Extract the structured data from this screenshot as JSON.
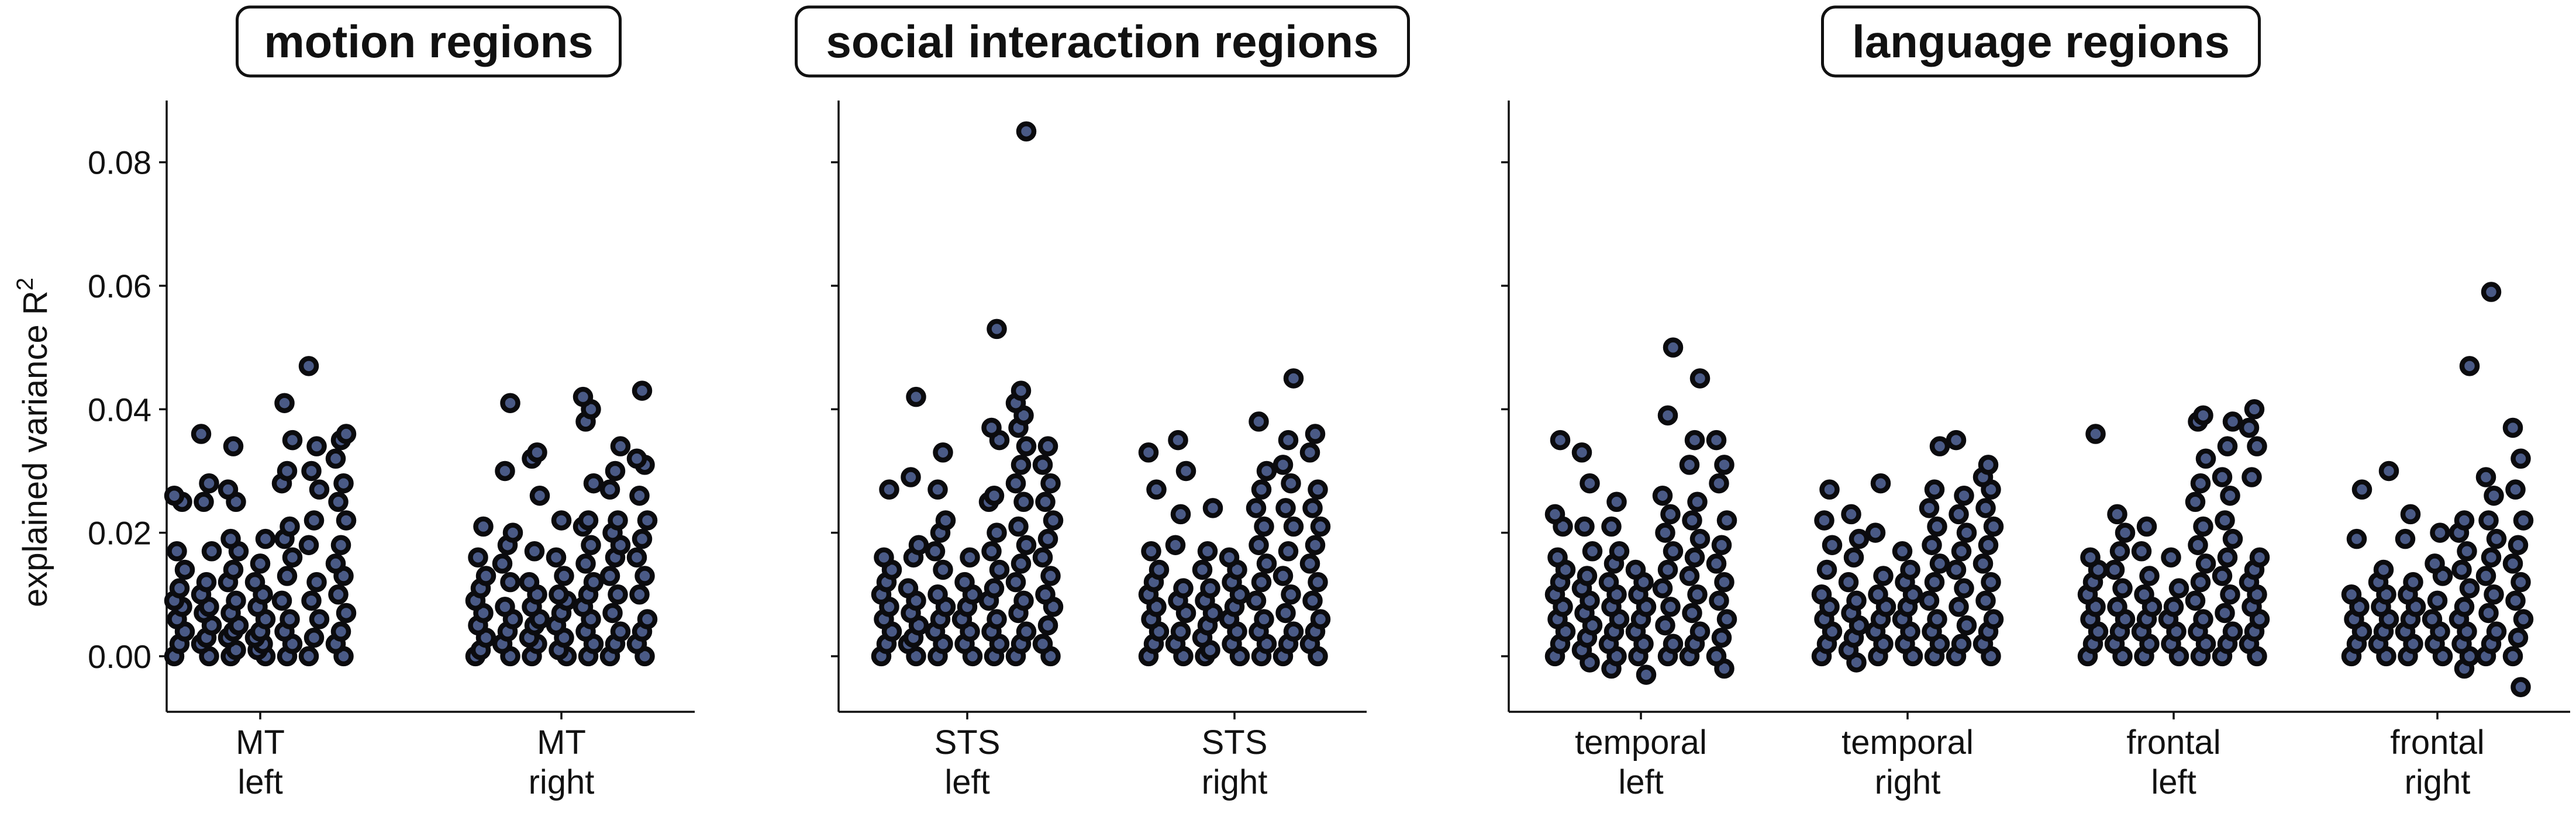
{
  "chart_data": {
    "type": "scatter",
    "ylabel": "explained variance R",
    "ylabel_superscript": "2",
    "ylim": [
      -0.009,
      0.09
    ],
    "yticks": [
      "0.00",
      "0.02",
      "0.04",
      "0.06",
      "0.08"
    ],
    "grid": false,
    "legend": "none",
    "colors": {
      "marker_fill": "#4a5a86",
      "marker_edge": "#0b0b0e",
      "axis": "#111111"
    },
    "panels": [
      {
        "title": "motion regions",
        "groups": [
          {
            "line1": "MT",
            "line2": "left",
            "values": [
              0.0,
              0.002,
              0.004,
              0.006,
              0.008,
              0.009,
              0.011,
              0.014,
              0.017,
              0.025,
              0.026,
              0.0,
              0.002,
              0.003,
              0.005,
              0.007,
              0.008,
              0.01,
              0.012,
              0.017,
              0.025,
              0.028,
              0.036,
              0.0,
              0.001,
              0.003,
              0.004,
              0.005,
              0.007,
              0.009,
              0.012,
              0.014,
              0.017,
              0.019,
              0.025,
              0.027,
              0.034,
              0.0,
              0.001,
              0.002,
              0.003,
              0.004,
              0.006,
              0.008,
              0.01,
              0.012,
              0.015,
              0.019,
              0.0,
              0.002,
              0.004,
              0.006,
              0.009,
              0.013,
              0.016,
              0.019,
              0.021,
              0.028,
              0.03,
              0.035,
              0.041,
              0.0,
              0.003,
              0.006,
              0.009,
              0.012,
              0.018,
              0.022,
              0.027,
              0.03,
              0.034,
              0.047,
              0.0,
              0.002,
              0.004,
              0.007,
              0.01,
              0.013,
              0.015,
              0.018,
              0.022,
              0.025,
              0.028,
              0.032,
              0.035,
              0.036
            ]
          },
          {
            "line1": "MT",
            "line2": "right",
            "values": [
              0.0,
              0.001,
              0.003,
              0.005,
              0.007,
              0.009,
              0.011,
              0.013,
              0.016,
              0.021,
              0.0,
              0.002,
              0.004,
              0.006,
              0.008,
              0.012,
              0.015,
              0.018,
              0.02,
              0.03,
              0.041,
              0.0,
              0.002,
              0.003,
              0.005,
              0.006,
              0.008,
              0.01,
              0.012,
              0.017,
              0.026,
              0.032,
              0.033,
              0.0,
              0.001,
              0.003,
              0.005,
              0.007,
              0.009,
              0.01,
              0.013,
              0.016,
              0.022,
              0.0,
              0.002,
              0.004,
              0.006,
              0.008,
              0.01,
              0.012,
              0.015,
              0.018,
              0.021,
              0.022,
              0.028,
              0.038,
              0.04,
              0.042,
              0.0,
              0.002,
              0.004,
              0.007,
              0.01,
              0.013,
              0.016,
              0.018,
              0.02,
              0.022,
              0.027,
              0.03,
              0.034,
              0.0,
              0.002,
              0.004,
              0.006,
              0.01,
              0.013,
              0.016,
              0.019,
              0.022,
              0.026,
              0.031,
              0.032,
              0.043
            ]
          }
        ]
      },
      {
        "title": "social interaction regions",
        "groups": [
          {
            "line1": "STS",
            "line2": "left",
            "values": [
              0.0,
              0.002,
              0.004,
              0.006,
              0.008,
              0.01,
              0.012,
              0.014,
              0.016,
              0.027,
              0.0,
              0.002,
              0.003,
              0.005,
              0.007,
              0.009,
              0.011,
              0.016,
              0.018,
              0.029,
              0.042,
              0.0,
              0.002,
              0.004,
              0.006,
              0.008,
              0.01,
              0.014,
              0.017,
              0.02,
              0.022,
              0.027,
              0.033,
              0.0,
              0.002,
              0.004,
              0.006,
              0.008,
              0.01,
              0.012,
              0.016,
              0.0,
              0.002,
              0.004,
              0.006,
              0.009,
              0.011,
              0.014,
              0.017,
              0.02,
              0.025,
              0.026,
              0.035,
              0.037,
              0.053,
              0.0,
              0.002,
              0.004,
              0.007,
              0.009,
              0.012,
              0.015,
              0.018,
              0.021,
              0.025,
              0.028,
              0.031,
              0.034,
              0.037,
              0.039,
              0.041,
              0.043,
              0.085,
              0.0,
              0.002,
              0.005,
              0.008,
              0.01,
              0.013,
              0.016,
              0.019,
              0.022,
              0.025,
              0.028,
              0.031,
              0.034
            ]
          },
          {
            "line1": "STS",
            "line2": "right",
            "values": [
              0.0,
              0.002,
              0.004,
              0.006,
              0.008,
              0.01,
              0.012,
              0.014,
              0.017,
              0.027,
              0.033,
              0.0,
              0.002,
              0.004,
              0.007,
              0.009,
              0.011,
              0.018,
              0.023,
              0.03,
              0.035,
              0.0,
              0.001,
              0.003,
              0.005,
              0.007,
              0.009,
              0.011,
              0.014,
              0.017,
              0.024,
              0.0,
              0.002,
              0.004,
              0.006,
              0.008,
              0.01,
              0.012,
              0.014,
              0.016,
              0.0,
              0.002,
              0.004,
              0.006,
              0.009,
              0.012,
              0.015,
              0.018,
              0.021,
              0.024,
              0.027,
              0.03,
              0.038,
              0.0,
              0.002,
              0.004,
              0.007,
              0.01,
              0.013,
              0.017,
              0.021,
              0.024,
              0.028,
              0.031,
              0.035,
              0.045,
              0.0,
              0.002,
              0.004,
              0.006,
              0.009,
              0.012,
              0.015,
              0.018,
              0.021,
              0.024,
              0.027,
              0.033,
              0.036
            ]
          }
        ]
      },
      {
        "title": "language regions",
        "groups": [
          {
            "line1": "temporal",
            "line2": "left",
            "values": [
              0.0,
              0.002,
              0.004,
              0.006,
              0.008,
              0.01,
              0.012,
              0.014,
              0.016,
              0.021,
              0.023,
              0.035,
              -0.001,
              0.001,
              0.003,
              0.005,
              0.007,
              0.009,
              0.011,
              0.013,
              0.017,
              0.021,
              0.028,
              0.033,
              -0.002,
              0.0,
              0.002,
              0.004,
              0.006,
              0.008,
              0.01,
              0.012,
              0.015,
              0.017,
              0.021,
              0.025,
              -0.003,
              0.0,
              0.002,
              0.004,
              0.006,
              0.008,
              0.01,
              0.012,
              0.014,
              0.0,
              0.002,
              0.005,
              0.008,
              0.011,
              0.014,
              0.017,
              0.02,
              0.023,
              0.026,
              0.039,
              0.05,
              0.0,
              0.002,
              0.004,
              0.007,
              0.01,
              0.013,
              0.016,
              0.019,
              0.022,
              0.025,
              0.031,
              0.035,
              0.045,
              -0.002,
              0.0,
              0.003,
              0.006,
              0.009,
              0.012,
              0.015,
              0.018,
              0.022,
              0.028,
              0.031,
              0.035
            ]
          },
          {
            "line1": "temporal",
            "line2": "right",
            "values": [
              0.0,
              0.002,
              0.004,
              0.006,
              0.008,
              0.01,
              0.014,
              0.018,
              0.022,
              0.027,
              -0.001,
              0.001,
              0.003,
              0.005,
              0.007,
              0.009,
              0.012,
              0.016,
              0.019,
              0.023,
              0.0,
              0.002,
              0.004,
              0.006,
              0.008,
              0.01,
              0.013,
              0.02,
              0.028,
              0.0,
              0.002,
              0.004,
              0.006,
              0.008,
              0.01,
              0.012,
              0.014,
              0.017,
              0.0,
              0.002,
              0.004,
              0.006,
              0.009,
              0.012,
              0.015,
              0.018,
              0.021,
              0.024,
              0.027,
              0.034,
              0.0,
              0.002,
              0.005,
              0.008,
              0.011,
              0.014,
              0.017,
              0.02,
              0.023,
              0.026,
              0.035,
              0.0,
              0.002,
              0.004,
              0.006,
              0.009,
              0.012,
              0.015,
              0.018,
              0.021,
              0.024,
              0.027,
              0.029,
              0.031
            ]
          },
          {
            "line1": "frontal",
            "line2": "left",
            "values": [
              0.0,
              0.002,
              0.004,
              0.006,
              0.008,
              0.01,
              0.012,
              0.014,
              0.016,
              0.036,
              0.0,
              0.002,
              0.004,
              0.006,
              0.008,
              0.011,
              0.014,
              0.017,
              0.02,
              0.023,
              0.0,
              0.002,
              0.004,
              0.006,
              0.008,
              0.01,
              0.013,
              0.017,
              0.021,
              0.0,
              0.002,
              0.004,
              0.006,
              0.008,
              0.011,
              0.016,
              0.0,
              0.002,
              0.004,
              0.006,
              0.009,
              0.012,
              0.015,
              0.018,
              0.021,
              0.025,
              0.028,
              0.032,
              0.038,
              0.039,
              0.0,
              0.002,
              0.004,
              0.007,
              0.01,
              0.013,
              0.016,
              0.019,
              0.022,
              0.026,
              0.029,
              0.034,
              0.038,
              0.0,
              0.002,
              0.004,
              0.006,
              0.008,
              0.01,
              0.012,
              0.014,
              0.016,
              0.029,
              0.034,
              0.037,
              0.04
            ]
          },
          {
            "line1": "frontal",
            "line2": "right",
            "values": [
              0.0,
              0.002,
              0.004,
              0.006,
              0.008,
              0.01,
              0.019,
              0.027,
              0.0,
              0.002,
              0.004,
              0.006,
              0.008,
              0.01,
              0.012,
              0.014,
              0.03,
              0.0,
              0.002,
              0.004,
              0.006,
              0.008,
              0.01,
              0.012,
              0.019,
              0.023,
              0.0,
              0.002,
              0.004,
              0.006,
              0.009,
              0.013,
              0.015,
              0.02,
              -0.002,
              0.0,
              0.002,
              0.004,
              0.006,
              0.008,
              0.011,
              0.014,
              0.017,
              0.02,
              0.022,
              0.047,
              0.0,
              0.002,
              0.004,
              0.007,
              0.01,
              0.013,
              0.016,
              0.019,
              0.022,
              0.026,
              0.029,
              0.059,
              -0.005,
              0.0,
              0.003,
              0.006,
              0.009,
              0.012,
              0.015,
              0.018,
              0.022,
              0.027,
              0.032,
              0.037
            ]
          }
        ]
      }
    ]
  }
}
